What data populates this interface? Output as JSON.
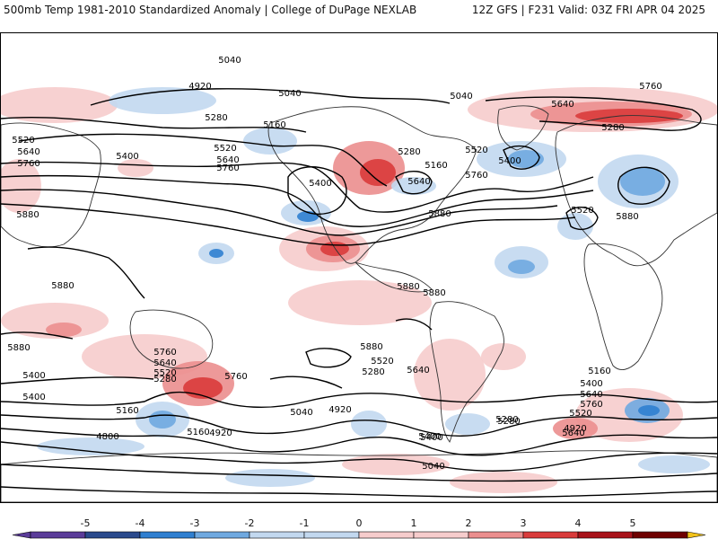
{
  "header": {
    "left": "500mb Temp 1981-2010 Standardized Anomaly | College of DuPage NEXLAB",
    "right": "12Z GFS | F231 Valid: 03Z FRI APR 04 2025"
  },
  "colors": {
    "m5": "#5b3c99",
    "m4": "#2a4a8c",
    "m3": "#2f7fd0",
    "m2": "#6fa9e0",
    "m1": "#c2d8ef",
    "p1": "#f6cccc",
    "p2": "#eb8e8e",
    "p3": "#d93b3b",
    "p4": "#a8121a",
    "p5": "#6e0000",
    "p6": "#f2c21a"
  },
  "colorbar": {
    "ticks": [
      "-5",
      "-4",
      "-3",
      "-2",
      "-1",
      "0",
      "1",
      "2",
      "3",
      "4",
      "5"
    ]
  },
  "contour_labels": [
    "5040",
    "4920",
    "5040",
    "5280",
    "5160",
    "5520",
    "5640",
    "5760",
    "5400",
    "5520",
    "5640",
    "5760",
    "5400",
    "5880",
    "5040",
    "5280",
    "5160",
    "5520",
    "5400",
    "5640",
    "5760",
    "5880",
    "5640",
    "5760",
    "5280",
    "5520",
    "5880",
    "5880",
    "5880",
    "5880",
    "5880",
    "5880",
    "5760",
    "5640",
    "5520",
    "5400",
    "5280",
    "5760",
    "5520",
    "5640",
    "5280",
    "5400",
    "5160",
    "5040",
    "4920",
    "4800",
    "4920",
    "5400",
    "5160",
    "5040",
    "5280",
    "5160",
    "5400",
    "5640",
    "5760",
    "5520",
    "5640",
    "5400",
    "4920",
    "5280"
  ]
}
